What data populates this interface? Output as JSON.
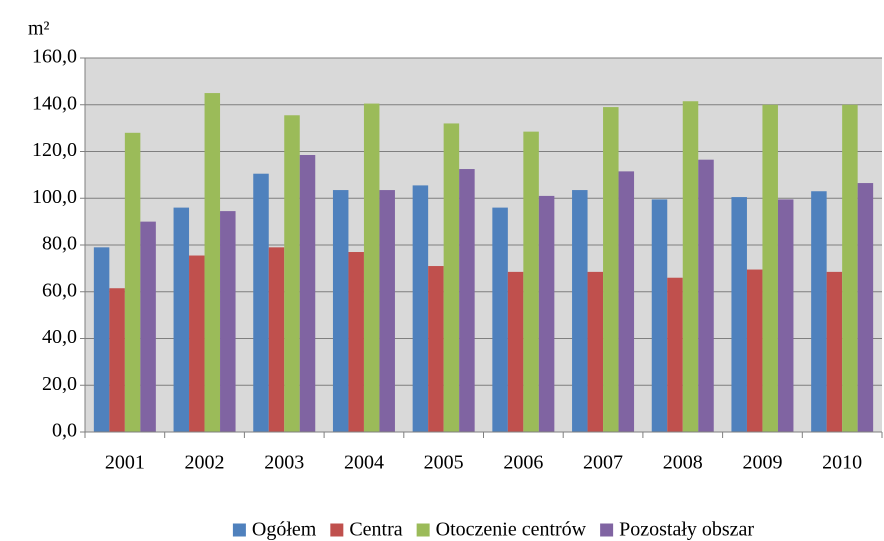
{
  "chart_data": {
    "type": "bar",
    "y_label": "m²",
    "categories": [
      "2001",
      "2002",
      "2003",
      "2004",
      "2005",
      "2006",
      "2007",
      "2008",
      "2009",
      "2010"
    ],
    "series": [
      {
        "name": "Ogółem",
        "color": "#4f81bd",
        "values": [
          79,
          96,
          110.5,
          103.5,
          105.5,
          96,
          103.5,
          99.5,
          100.5,
          103
        ]
      },
      {
        "name": "Centra",
        "color": "#c0504d",
        "values": [
          61.5,
          75.5,
          79,
          77,
          71,
          68.5,
          68.5,
          66,
          69.5,
          68.5
        ]
      },
      {
        "name": "Otoczenie centrów",
        "color": "#9bbb59",
        "values": [
          128,
          145,
          135.5,
          140.5,
          132,
          128.5,
          139,
          141.5,
          140,
          140
        ]
      },
      {
        "name": "Pozostały obszar",
        "color": "#8064a2",
        "values": [
          90,
          94.5,
          118.5,
          103.5,
          112.5,
          101,
          111.5,
          116.5,
          99.5,
          106.5
        ]
      }
    ],
    "ylim": [
      0,
      160
    ],
    "yticks": [
      {
        "value": 0,
        "label": "0,0"
      },
      {
        "value": 20,
        "label": "20,0"
      },
      {
        "value": 40,
        "label": "40,0"
      },
      {
        "value": 60,
        "label": "60,0"
      },
      {
        "value": 80,
        "label": "80,0"
      },
      {
        "value": 100,
        "label": "100,0"
      },
      {
        "value": 120,
        "label": "120,0"
      },
      {
        "value": 140,
        "label": "140,0"
      },
      {
        "value": 160,
        "label": "160,0"
      }
    ],
    "grid": true,
    "legend": "bottom"
  }
}
